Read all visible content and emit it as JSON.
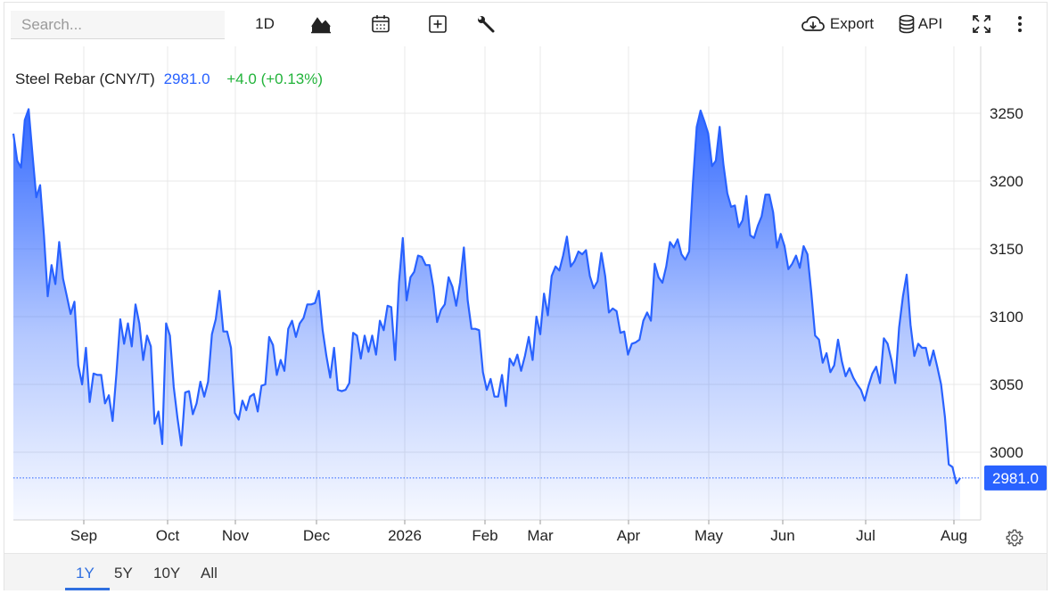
{
  "search": {
    "placeholder": "Search..."
  },
  "toolbar": {
    "interval_label": "1D",
    "export_label": "Export",
    "api_label": "API"
  },
  "legend": {
    "name": "Steel Rebar (CNY/T)",
    "price": "2981.0",
    "change": "+4.0 (+0.13%)",
    "price_color": "#2962ff",
    "change_color": "#22b33a"
  },
  "last_price_label": "2981.0",
  "range_tabs": [
    {
      "label": "1Y",
      "active": true
    },
    {
      "label": "5Y",
      "active": false
    },
    {
      "label": "10Y",
      "active": false
    },
    {
      "label": "All",
      "active": false
    }
  ],
  "colors": {
    "line": "#2962ff",
    "label_bg": "#2962ff",
    "grid": "#e8e8e8"
  },
  "chart_data": {
    "type": "area",
    "title": "Steel Rebar (CNY/T)",
    "x_tick_labels": [
      "Sep",
      "Oct",
      "Nov",
      "Dec",
      "2026",
      "Feb",
      "Mar",
      "Apr",
      "May",
      "Jun",
      "Jul",
      "Aug"
    ],
    "y_ticks": [
      3000,
      3050,
      3100,
      3150,
      3200,
      3250
    ],
    "ylim": [
      2950,
      3265
    ],
    "last_value": 2981.0,
    "grid": true,
    "series": [
      {
        "values": [
          3235,
          3215,
          3210,
          3245,
          3253,
          3220,
          3188,
          3197,
          3160,
          3115,
          3138,
          3124,
          3155,
          3128,
          3115,
          3102,
          3111,
          3064,
          3050,
          3077,
          3037,
          3058,
          3057,
          3057,
          3036,
          3042,
          3023,
          3058,
          3098,
          3080,
          3095,
          3078,
          3109,
          3095,
          3068,
          3086,
          3078,
          3021,
          3030,
          3006,
          3095,
          3086,
          3048,
          3025,
          3005,
          3044,
          3045,
          3028,
          3036,
          3052,
          3041,
          3052,
          3087,
          3098,
          3119,
          3089,
          3089,
          3077,
          3029,
          3024,
          3038,
          3031,
          3041,
          3043,
          3030,
          3049,
          3050,
          3085,
          3079,
          3057,
          3068,
          3060,
          3091,
          3097,
          3085,
          3095,
          3099,
          3109,
          3109,
          3110,
          3119,
          3090,
          3071,
          3055,
          3077,
          3046,
          3045,
          3046,
          3051,
          3088,
          3086,
          3069,
          3086,
          3074,
          3086,
          3072,
          3097,
          3090,
          3108,
          3107,
          3068,
          3125,
          3158,
          3112,
          3129,
          3133,
          3145,
          3144,
          3138,
          3138,
          3122,
          3096,
          3105,
          3109,
          3129,
          3122,
          3108,
          3125,
          3151,
          3112,
          3091,
          3091,
          3090,
          3059,
          3046,
          3054,
          3041,
          3041,
          3057,
          3034,
          3069,
          3064,
          3072,
          3060,
          3071,
          3085,
          3068,
          3100,
          3087,
          3117,
          3101,
          3130,
          3137,
          3134,
          3145,
          3159,
          3137,
          3141,
          3148,
          3146,
          3149,
          3130,
          3121,
          3126,
          3147,
          3130,
          3103,
          3106,
          3104,
          3088,
          3089,
          3072,
          3080,
          3081,
          3083,
          3097,
          3103,
          3097,
          3139,
          3129,
          3125,
          3137,
          3155,
          3151,
          3157,
          3146,
          3142,
          3148,
          3198,
          3240,
          3252,
          3244,
          3235,
          3211,
          3215,
          3240,
          3212,
          3191,
          3181,
          3182,
          3166,
          3171,
          3189,
          3160,
          3158,
          3167,
          3174,
          3190,
          3190,
          3177,
          3151,
          3161,
          3152,
          3135,
          3139,
          3145,
          3136,
          3152,
          3146,
          3118,
          3086,
          3083,
          3066,
          3073,
          3059,
          3064,
          3083,
          3067,
          3056,
          3062,
          3055,
          3050,
          3046,
          3038,
          3049,
          3058,
          3063,
          3051,
          3084,
          3080,
          3068,
          3051,
          3092,
          3115,
          3131,
          3094,
          3071,
          3080,
          3077,
          3077,
          3064,
          3075,
          3063,
          3050,
          3026,
          2991,
          2989,
          2977,
          2981
        ]
      }
    ]
  }
}
